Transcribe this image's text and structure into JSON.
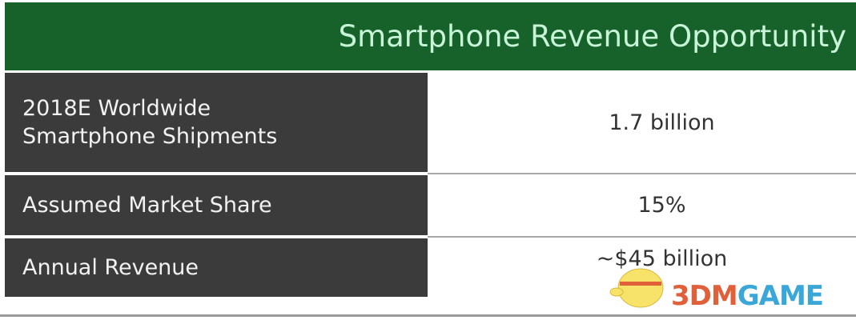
{
  "title": "Smartphone Revenue Opportunity",
  "rows": [
    {
      "label_lines": [
        "2018E Worldwide",
        "Smartphone Shipments"
      ],
      "value": "1.7 billion"
    },
    {
      "label": "Assumed Market Share",
      "value": "15%"
    },
    {
      "label": "Annual Revenue",
      "value": "~$45 billion"
    }
  ],
  "watermark": {
    "text_a": "3DM",
    "text_b": "GAME"
  },
  "colors": {
    "header": "#17612a",
    "label_bg": "#3b3b3b"
  }
}
